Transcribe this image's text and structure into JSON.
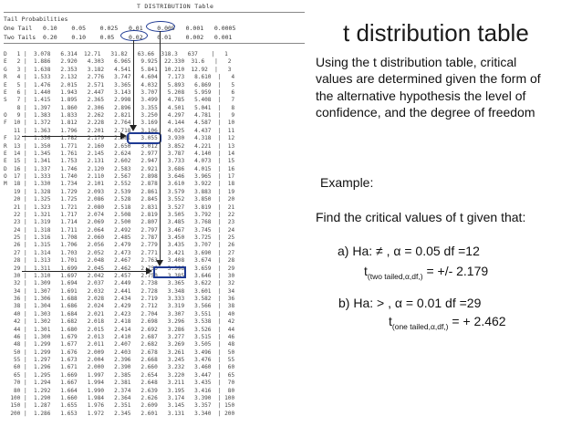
{
  "slide": {
    "title": "t distribution table",
    "intro": "Using the t distribution table, critical values are determined given the form of the alternative hypothesis  the level of confidence, and the degree of freedom",
    "example_label": "Example:",
    "find_text": "Find the critical values of t given that:",
    "case_a": {
      "condition": "a) Ha:  ≠ , α = 0.05  df =12",
      "t_symbol": "t",
      "subscript": "(two tailed,α,df,)",
      "result": " = +/- 2.179"
    },
    "case_b": {
      "condition": "b) Ha: > , α = 0.01  df =29",
      "t_symbol": "t",
      "subscript": "(one tailed,α,df,)",
      "result": " = + 2.462"
    }
  },
  "table": {
    "title": "T DISTRIBUTION Table",
    "header_row1": "Tail Probabilities",
    "header_row2": "One Tail   0.10    0.05    0.025   0.01    0.005   0.001   0.0005",
    "header_row3": "Two Tails  0.20    0.10    0.05    0.02    0.01    0.002   0.001",
    "rows": [
      "D   1 |  3.078   6.314  12.71   31.82   63.66  318.3   637    |   1",
      "E   2 |  1.886   2.920   4.303   6.965   9.925  22.330  31.6   |   2",
      "G   3 |  1.638   2.353   3.182   4.541   5.841  10.210  12.92  |   3",
      "R   4 |  1.533   2.132   2.776   3.747   4.604   7.173   8.610  |   4",
      "E   5 |  1.476   2.015   2.571   3.365   4.032   5.893   6.869  |   5",
      "E   6 |  1.440   1.943   2.447   3.143   3.707   5.208   5.959  |   6",
      "S   7 |  1.415   1.895   2.365   2.998   3.499   4.785   5.408  |   7",
      "    8 |  1.397   1.860   2.306   2.896   3.355   4.501   5.041  |   8",
      "O   9 |  1.383   1.833   2.262   2.821   3.250   4.297   4.781  |   9",
      "F  10 |  1.372   1.812   2.228   2.764   3.169   4.144   4.587  |  10",
      "   11 |  1.363   1.796   2.201   2.718   3.106   4.025   4.437  |  11",
      "F  12 |  1.356   1.782   2.179   2.681   3.055   3.930   4.318  |  12",
      "R  13 |  1.350   1.771   2.160   2.650   3.012   3.852   4.221  |  13",
      "E  14 |  1.345   1.761   2.145   2.624   2.977   3.787   4.140  |  14",
      "E  15 |  1.341   1.753   2.131   2.602   2.947   3.733   4.073  |  15",
      "D  16 |  1.337   1.746   2.120   2.583   2.921   3.686   4.015  |  16",
      "O  17 |  1.333   1.740   2.110   2.567   2.898   3.646   3.965  |  17",
      "M  18 |  1.330   1.734   2.101   2.552   2.878   3.610   3.922  |  18",
      "   19 |  1.328   1.729   2.093   2.539   2.861   3.579   3.883  |  19",
      "   20 |  1.325   1.725   2.086   2.528   2.845   3.552   3.850  |  20",
      "   21 |  1.323   1.721   2.080   2.518   2.831   3.527   3.819  |  21",
      "   22 |  1.321   1.717   2.074   2.508   2.819   3.505   3.792  |  22",
      "   23 |  1.319   1.714   2.069   2.500   2.807   3.485   3.768  |  23",
      "   24 |  1.318   1.711   2.064   2.492   2.797   3.467   3.745  |  24",
      "   25 |  1.316   1.708   2.060   2.485   2.787   3.450   3.725  |  25",
      "   26 |  1.315   1.706   2.056   2.479   2.779   3.435   3.707  |  26",
      "   27 |  1.314   1.703   2.052   2.473   2.771   3.421   3.690  |  27",
      "   28 |  1.313   1.701   2.048   2.467   2.763   3.408   3.674  |  28",
      "   29 |  1.311   1.699   2.045   2.462   2.756   3.396   3.659  |  29",
      "   30 |  1.310   1.697   2.042   2.457   2.750   3.385   3.646  |  30",
      "   32 |  1.309   1.694   2.037   2.449   2.738   3.365   3.622  |  32",
      "   34 |  1.307   1.691   2.032   2.441   2.728   3.348   3.601  |  34",
      "   36 |  1.306   1.688   2.028   2.434   2.719   3.333   3.582  |  36",
      "   38 |  1.304   1.686   2.024   2.429   2.712   3.319   3.566  |  38",
      "   40 |  1.303   1.684   2.021   2.423   2.704   3.307   3.551  |  40",
      "   42 |  1.302   1.682   2.018   2.418   2.698   3.296   3.538  |  42",
      "   44 |  1.301   1.680   2.015   2.414   2.692   3.286   3.526  |  44",
      "   46 |  1.300   1.679   2.013   2.410   2.687   3.277   3.515  |  46",
      "   48 |  1.299   1.677   2.011   2.407   2.682   3.269   3.505  |  48",
      "   50 |  1.299   1.676   2.009   2.403   2.678   3.261   3.496  |  50",
      "   55 |  1.297   1.673   2.004   2.396   2.668   3.245   3.476  |  55",
      "   60 |  1.296   1.671   2.000   2.390   2.660   3.232   3.460  |  60",
      "   65 |  1.295   1.669   1.997   2.385   2.654   3.220   3.447  |  65",
      "   70 |  1.294   1.667   1.994   2.381   2.648   3.211   3.435  |  70",
      "   80 |  1.292   1.664   1.990   2.374   2.639   3.195   3.416  |  80",
      "  100 |  1.290   1.660   1.984   2.364   2.626   3.174   3.390  | 100",
      "  150 |  1.287   1.655   1.976   2.351   2.609   3.145   3.357  | 150",
      "  200 |  1.286   1.653   1.972   2.345   2.601   3.131   3.340  | 200"
    ]
  }
}
